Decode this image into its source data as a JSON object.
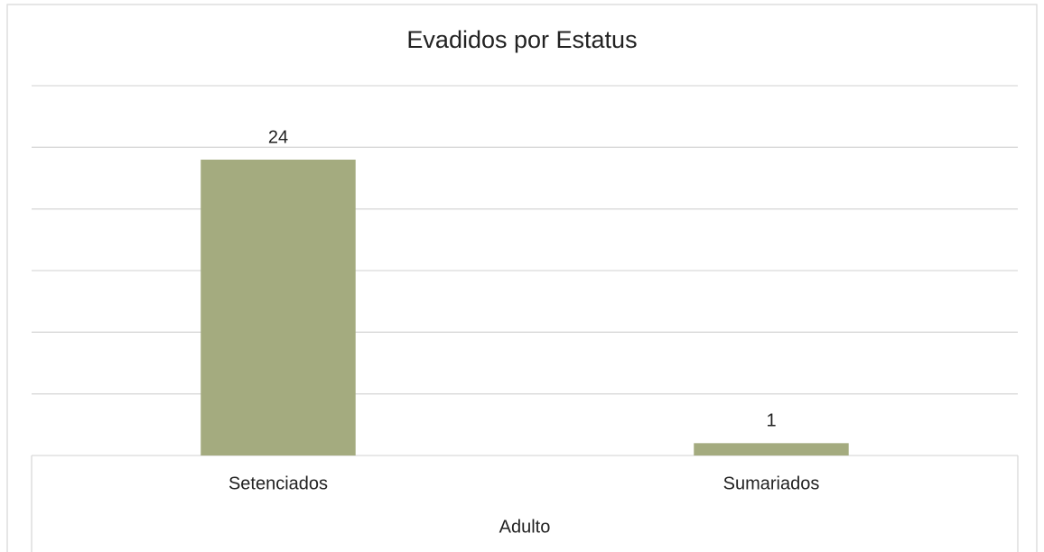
{
  "chart_data": {
    "type": "bar",
    "title": "Evadidos por Estatus",
    "categories": [
      "Setenciados",
      "Sumariados"
    ],
    "category_group": "Adulto",
    "values": [
      24,
      1
    ],
    "color": "#a4ab7f",
    "ylim": [
      0,
      30
    ],
    "yticks": [
      0,
      5,
      10,
      15,
      20,
      25,
      30
    ],
    "grid": true,
    "data_labels": true
  }
}
